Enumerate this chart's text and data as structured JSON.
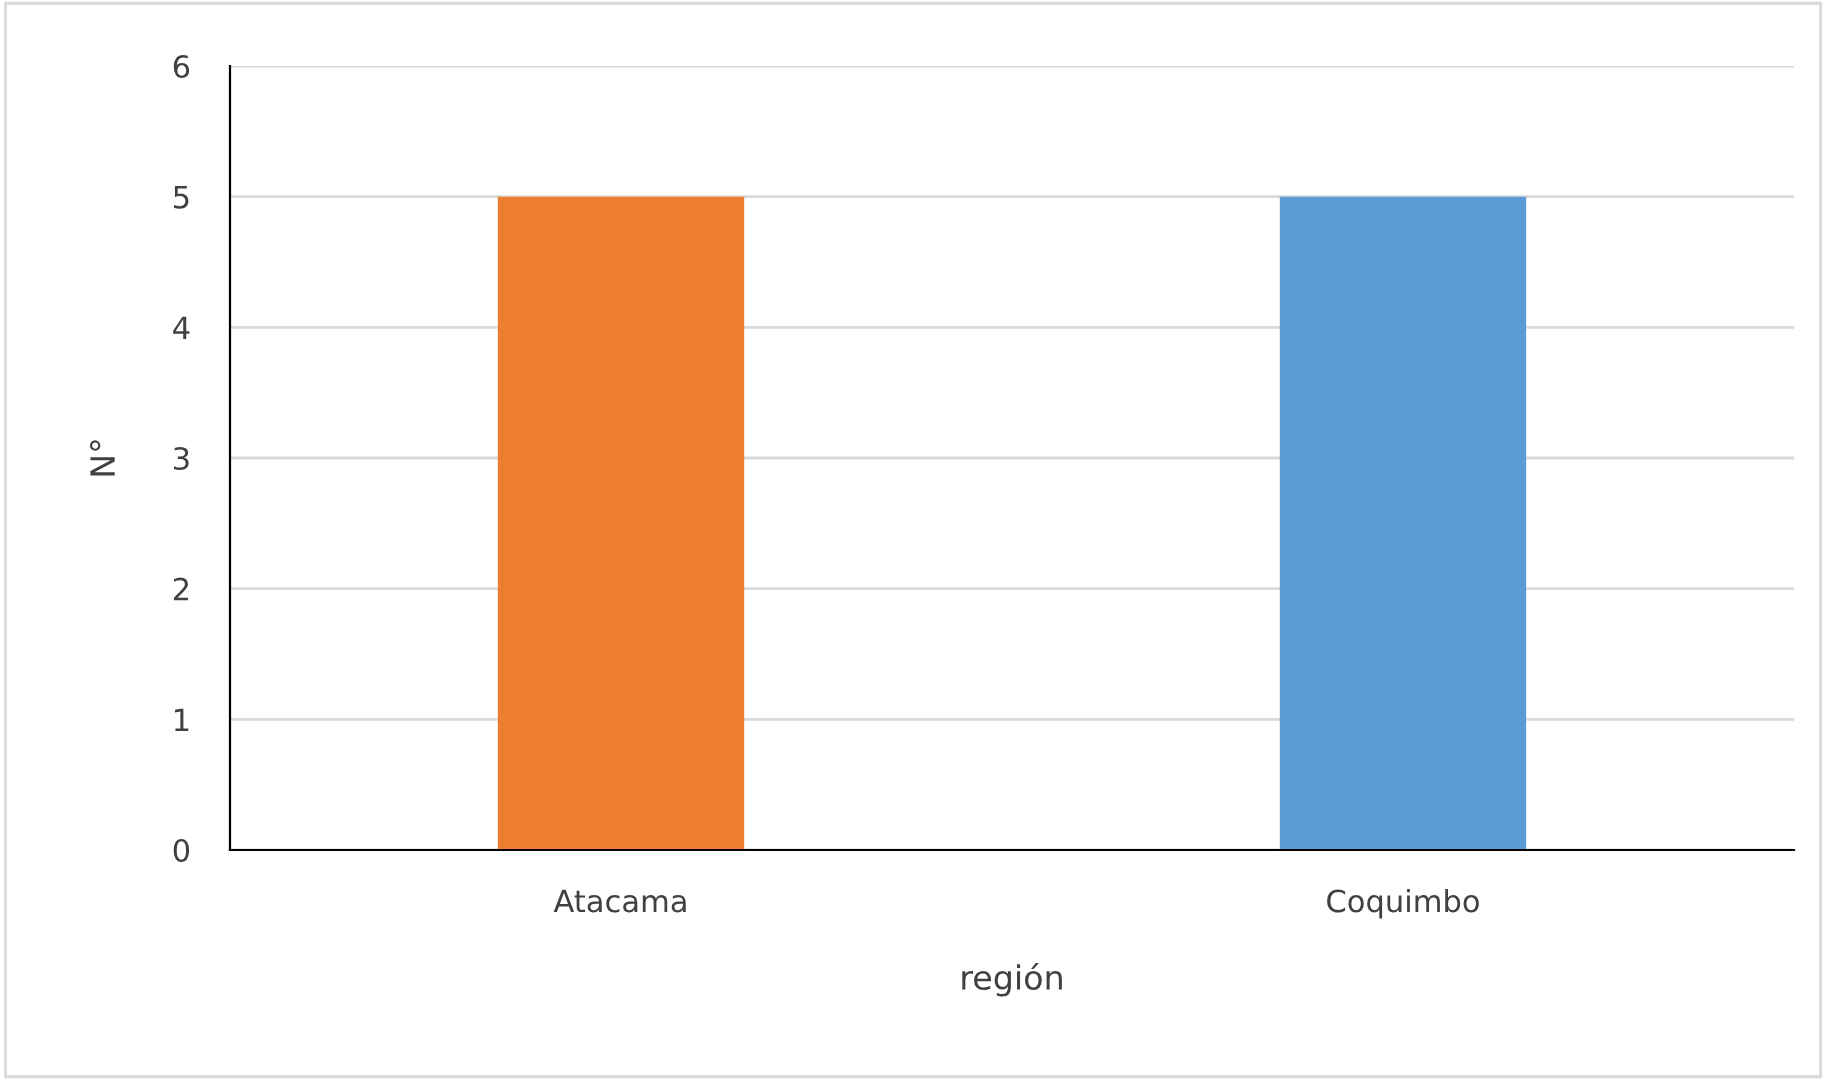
{
  "chart_data": {
    "type": "bar",
    "xlabel": "región",
    "ylabel": "N°",
    "categories": [
      "Atacama",
      "Coquimbo"
    ],
    "values": [
      5,
      5
    ],
    "colors": [
      "#ed7d31",
      "#5b9bd5"
    ],
    "ylim": [
      0,
      6
    ],
    "yticks": [
      0,
      1,
      2,
      3,
      4,
      5,
      6
    ],
    "grid": "y"
  }
}
